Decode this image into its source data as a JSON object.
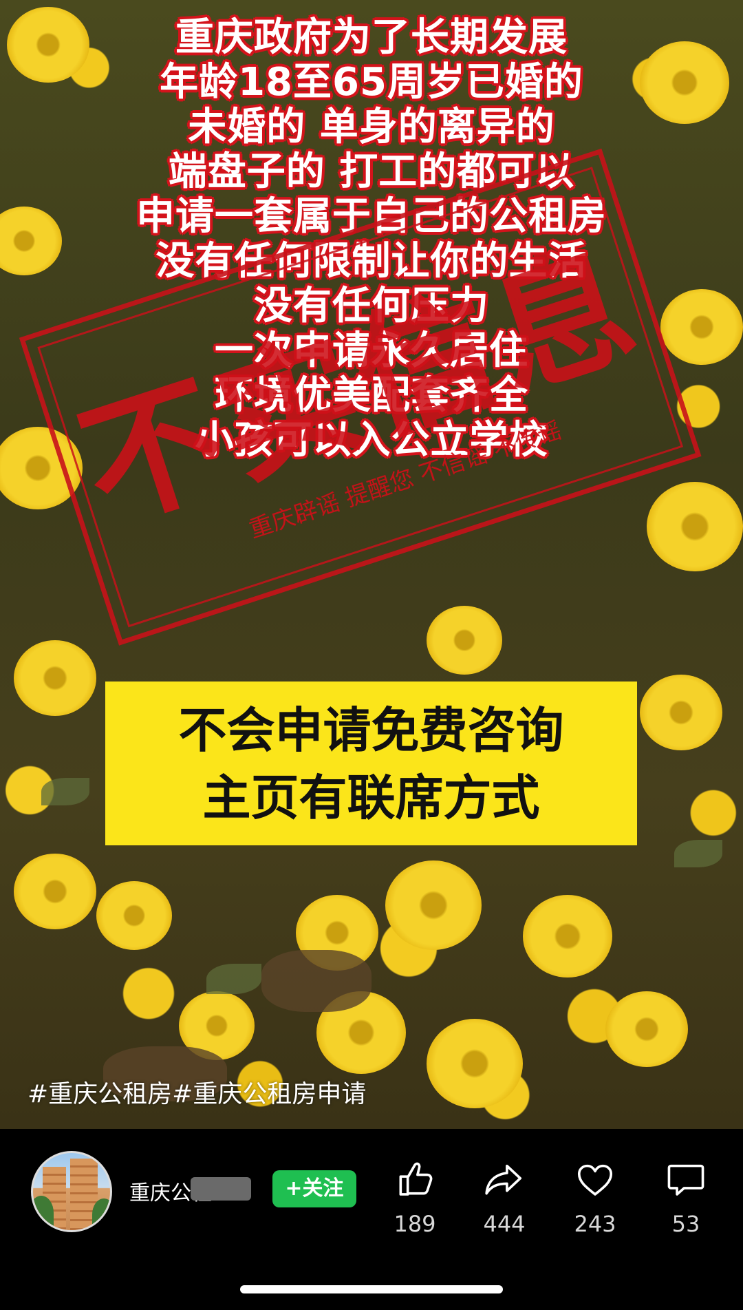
{
  "video": {
    "headline_lines": [
      "重庆政府为了长期发展",
      "年龄18至65周岁已婚的",
      "未婚的 单身的离异的",
      "端盘子的 打工的都可以",
      "申请一套属于自己的公租房",
      "没有任何限制让你的生活",
      "没有任何压力",
      "一次申请永久居住",
      "环境优美配套齐全",
      "小孩可以入公立学校"
    ],
    "cta_lines": [
      "不会申请免费咨询",
      "主页有联席方式"
    ],
    "stamp": {
      "main_text": "不实信息",
      "sub_text": "重庆辟谣 提醒您 不信谣 不传谣"
    },
    "hashtags": "#重庆公租房#重庆公租房申请"
  },
  "bottom_bar": {
    "username": "重庆公租",
    "follow_label": "+关注",
    "actions": {
      "like": {
        "icon": "thumbs-up-icon",
        "count": "189"
      },
      "share": {
        "icon": "share-arrow-icon",
        "count": "444"
      },
      "favorite": {
        "icon": "heart-icon",
        "count": "243"
      },
      "comment": {
        "icon": "comment-bubble-icon",
        "count": "53"
      }
    }
  },
  "colors": {
    "headline_outline": "#d4131b",
    "cta_background": "#fbe51a",
    "follow_button": "#1fbf51",
    "stamp_red": "#cd1018"
  }
}
